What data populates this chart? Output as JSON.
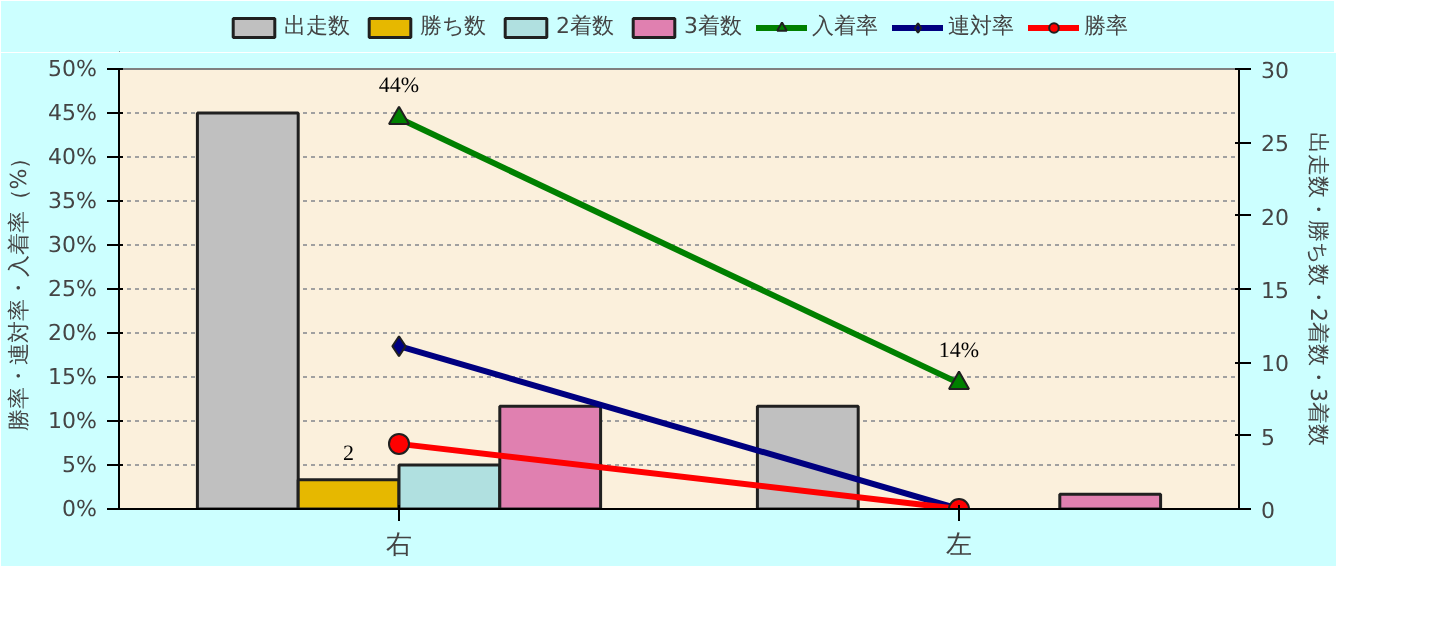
{
  "chart_data": {
    "type": "bar",
    "categories": [
      "右",
      "左"
    ],
    "ylabel": "勝率・連対率・入着率（%）",
    "y2label": "出走数・勝ち数・2着数・3着数",
    "ylim": [
      0,
      50
    ],
    "yticks": [
      {
        "value": 0,
        "label": "0%"
      },
      {
        "value": 5,
        "label": "5%"
      },
      {
        "value": 10,
        "label": "10%"
      },
      {
        "value": 15,
        "label": "15%"
      },
      {
        "value": 20,
        "label": "20%"
      },
      {
        "value": 25,
        "label": "25%"
      },
      {
        "value": 30,
        "label": "30%"
      },
      {
        "value": 35,
        "label": "35%"
      },
      {
        "value": 40,
        "label": "40%"
      },
      {
        "value": 45,
        "label": "45%"
      },
      {
        "value": 50,
        "label": "50%"
      }
    ],
    "y2lim": [
      0,
      30
    ],
    "y2ticks": [
      0,
      5,
      10,
      15,
      20,
      25,
      30
    ],
    "grid": "y",
    "legend": "top",
    "series": [
      {
        "name": "出走数",
        "axis": "y2",
        "color": "#c0c0c0",
        "values": [
          27,
          7
        ]
      },
      {
        "name": "勝ち数",
        "axis": "y2",
        "color": "#e6b800",
        "values": [
          2,
          0
        ],
        "value_labels": [
          "2",
          null
        ]
      },
      {
        "name": "2着数",
        "axis": "y2",
        "color": "#b0e0e0",
        "values": [
          3,
          0
        ]
      },
      {
        "name": "3着数",
        "axis": "y2",
        "color": "#e080b0",
        "values": [
          7,
          1
        ]
      },
      {
        "name": "入着率",
        "type": "line",
        "color": "#008000",
        "marker": "triangle",
        "values": [
          44.4,
          14.3
        ],
        "value_labels": [
          "44%",
          "14%"
        ]
      },
      {
        "name": "連対率",
        "type": "line",
        "color": "#000080",
        "marker": "diamond",
        "values": [
          18.5,
          0
        ]
      },
      {
        "name": "勝率",
        "type": "line",
        "color": "#ff0000",
        "marker": "circle",
        "values": [
          7.4,
          0
        ]
      }
    ]
  }
}
